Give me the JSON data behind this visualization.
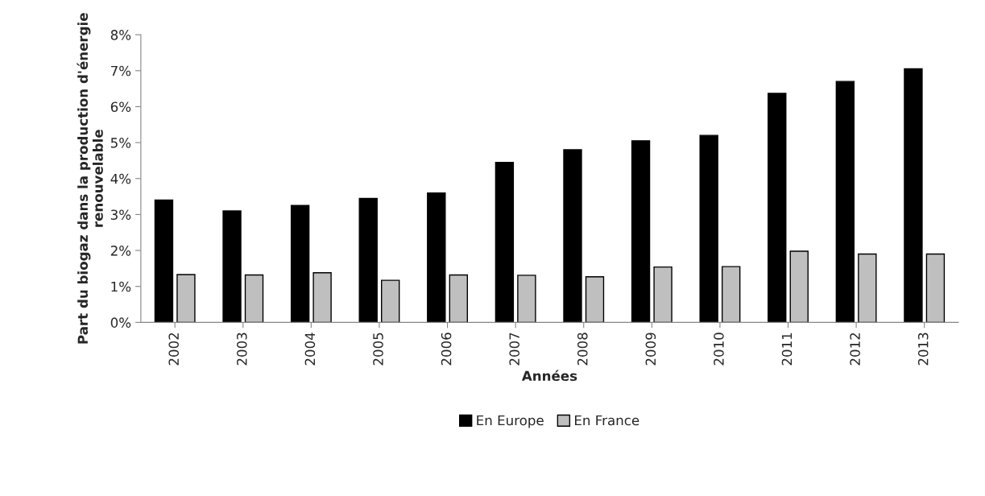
{
  "chart_data": {
    "type": "bar",
    "xlabel": "Années",
    "ylabel": "Part du biogaz dans la production d'énergie renouvelable",
    "categories": [
      "2002",
      "2003",
      "2004",
      "2005",
      "2006",
      "2007",
      "2008",
      "2009",
      "2010",
      "2011",
      "2012",
      "2013"
    ],
    "series": [
      {
        "name": "En Europe",
        "color": "#000000",
        "values": [
          3.4,
          3.1,
          3.25,
          3.45,
          3.6,
          4.45,
          4.8,
          5.05,
          5.2,
          6.37,
          6.7,
          7.05
        ]
      },
      {
        "name": "En France",
        "color": "#bfbfbf",
        "values": [
          1.33,
          1.32,
          1.38,
          1.17,
          1.32,
          1.31,
          1.27,
          1.54,
          1.55,
          1.98,
          1.9,
          1.9
        ]
      }
    ],
    "ylim": [
      0,
      8
    ],
    "yticks": [
      {
        "value": 0,
        "label": "0%"
      },
      {
        "value": 1,
        "label": "1%"
      },
      {
        "value": 2,
        "label": "2%"
      },
      {
        "value": 3,
        "label": "3%"
      },
      {
        "value": 4,
        "label": "4%"
      },
      {
        "value": 5,
        "label": "5%"
      },
      {
        "value": 6,
        "label": "6%"
      },
      {
        "value": 7,
        "label": "7%"
      },
      {
        "value": 8,
        "label": "8%"
      }
    ],
    "grid": false,
    "legend": "bottom"
  }
}
